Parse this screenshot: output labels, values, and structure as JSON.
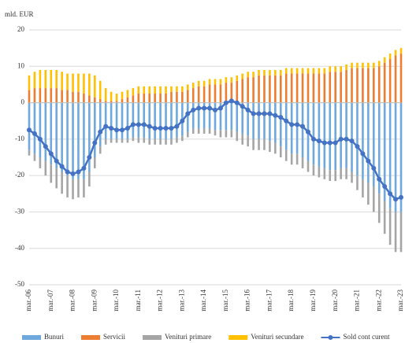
{
  "chart_data": {
    "type": "bar",
    "stacked": true,
    "y_label": "mld. EUR",
    "ylim": [
      -50,
      20
    ],
    "yticks": [
      -50,
      -40,
      -30,
      -20,
      -10,
      0,
      10,
      20
    ],
    "grid": true,
    "legend": "bottom",
    "categories": [
      "mar.-06",
      null,
      null,
      null,
      "mar.-07",
      null,
      null,
      null,
      "mar.-08",
      null,
      null,
      null,
      "mar.-09",
      null,
      null,
      null,
      "mar.-10",
      null,
      null,
      null,
      "mar.-11",
      null,
      null,
      null,
      "mar.-12",
      null,
      null,
      null,
      "mar.-13",
      null,
      null,
      null,
      "mar.-14",
      null,
      null,
      null,
      "mar.-15",
      null,
      null,
      null,
      "mar.-16",
      null,
      null,
      null,
      "mar.-17",
      null,
      null,
      null,
      "mar.-18",
      null,
      null,
      null,
      "mar.-19",
      null,
      null,
      null,
      "mar.-20",
      null,
      null,
      null,
      "mar.-21",
      null,
      null,
      null,
      "mar.-22",
      null,
      null,
      null,
      "mar.-23"
    ],
    "series": [
      {
        "name": "Bunuri",
        "color": "#6fa8dc",
        "values": [
          -13,
          -14,
          -15,
          -16,
          -17,
          -18,
          -19,
          -20,
          -21,
          -21,
          -21,
          -19,
          -15,
          -12,
          -10,
          -10,
          -10,
          -10,
          -10,
          -9.5,
          -9.5,
          -9.5,
          -10,
          -10,
          -10,
          -10,
          -10,
          -9.5,
          -9,
          -8,
          -7,
          -7,
          -7,
          -7,
          -7.5,
          -7.5,
          -7.5,
          -7.5,
          -8,
          -8.5,
          -9,
          -10,
          -10,
          -10,
          -10.5,
          -11,
          -12,
          -13,
          -14,
          -14,
          -15,
          -16,
          -17,
          -17.5,
          -18,
          -18.5,
          -18.5,
          -18,
          -18,
          -19,
          -20,
          -21,
          -22,
          -23,
          -25,
          -27,
          -29,
          -30,
          -30
        ]
      },
      {
        "name": "Servicii",
        "color": "#ed7d31",
        "values": [
          3.5,
          4,
          4,
          4,
          4,
          4,
          3.5,
          3.5,
          3,
          3,
          2.5,
          2,
          1.5,
          1,
          0.5,
          0.5,
          0.5,
          1,
          1.5,
          2,
          2.5,
          2.5,
          2.5,
          2.5,
          2.5,
          2.5,
          3,
          3,
          3,
          3.5,
          4,
          4.5,
          4.5,
          5,
          5,
          5,
          5.5,
          5.5,
          6,
          6.5,
          7,
          7,
          7.5,
          7.5,
          7.5,
          7.5,
          7.5,
          8,
          8,
          8,
          8,
          8,
          8,
          8,
          8,
          8.5,
          8.5,
          8.5,
          9,
          9.5,
          9.5,
          9.5,
          9.5,
          9.5,
          10,
          11,
          12,
          13,
          13.5
        ]
      },
      {
        "name": "Venituri primare",
        "color": "#a5a5a5",
        "values": [
          -1.5,
          -2,
          -3,
          -4,
          -5,
          -5.5,
          -6,
          -6,
          -5.5,
          -5,
          -5,
          -4,
          -3,
          -2,
          -1.5,
          -1,
          -1,
          -1,
          -1,
          -1,
          -1.5,
          -1.5,
          -1.5,
          -1.5,
          -1.5,
          -1.5,
          -1.5,
          -1.5,
          -1.5,
          -1.5,
          -1.5,
          -1.5,
          -1.5,
          -1.5,
          -1.5,
          -2,
          -2,
          -2,
          -2.5,
          -3,
          -3,
          -3,
          -3,
          -3,
          -3,
          -3,
          -3,
          -3,
          -3,
          -3,
          -3,
          -3,
          -3,
          -3,
          -3,
          -3,
          -3,
          -3,
          -3,
          -3,
          -4,
          -5,
          -6,
          -7,
          -8,
          -9,
          -10,
          -11,
          -11
        ]
      },
      {
        "name": "Venituri secundare",
        "color": "#ffc000",
        "values": [
          4,
          4.5,
          5,
          5,
          5,
          5,
          5,
          4.5,
          5,
          5,
          5.5,
          6,
          6,
          5,
          3.5,
          2.5,
          2,
          2,
          2,
          2,
          2,
          2,
          2,
          2,
          2,
          2,
          1.5,
          1.5,
          1.5,
          1.5,
          1.5,
          1.5,
          1.5,
          1.5,
          1.5,
          1.5,
          1.5,
          1.5,
          1.5,
          1.5,
          1.5,
          1.5,
          1.5,
          1.5,
          1.5,
          1.5,
          1.5,
          1.5,
          1.5,
          1.5,
          1.5,
          1.5,
          1.5,
          1.5,
          1.5,
          1.5,
          1.5,
          1.5,
          1.5,
          1.5,
          1.5,
          1.5,
          1.5,
          1.5,
          1.5,
          1.5,
          1.5,
          1.5,
          1.5
        ]
      },
      {
        "name": "Sold cont curent",
        "type": "line",
        "color": "#4472c4",
        "values": [
          -7.5,
          -8.5,
          -10,
          -12,
          -14,
          -16,
          -17.5,
          -19,
          -19.5,
          -19,
          -18,
          -15,
          -11,
          -8,
          -6.5,
          -7,
          -7.5,
          -7.5,
          -7,
          -6,
          -6,
          -6,
          -6.5,
          -7,
          -7,
          -7,
          -7,
          -6.5,
          -5,
          -3,
          -2,
          -1.5,
          -1.5,
          -1.5,
          -2,
          -1.5,
          0,
          0.5,
          0,
          -1,
          -2,
          -3,
          -3,
          -3,
          -3,
          -3.5,
          -4,
          -5,
          -6,
          -6,
          -6.5,
          -8,
          -10,
          -10.5,
          -11,
          -11,
          -11,
          -10,
          -10,
          -10.5,
          -12,
          -14,
          -16,
          -18,
          -21,
          -23,
          -25,
          -26.5,
          -26
        ]
      }
    ]
  }
}
